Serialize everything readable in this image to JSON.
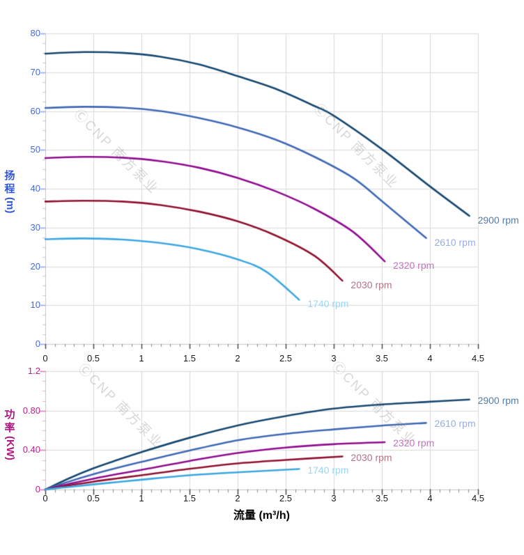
{
  "watermark": {
    "text": "ⒸCNP 南方泵业"
  },
  "colors": {
    "grid": "#d9d9d9",
    "axis_line": "#c4c4c4",
    "x_tick_major": "#3c3c3c",
    "x_tick_minor": "#8a8a8a",
    "head_axis_text": "#4468dd",
    "head_axis_title": "#2f55dd",
    "head_tick_major": "#8aa4ec",
    "head_tick_minor": "#b9c9f4",
    "power_axis_text": "#bb2288",
    "power_axis_title": "#b01580",
    "power_tick_major": "#d878b8",
    "power_tick_minor": "#eca8d4"
  },
  "chart_data": [
    {
      "type": "line",
      "title": "",
      "ylabel": "扬程",
      "ylabel_unit": "(m)",
      "xlabel": "",
      "ylim": [
        0,
        80
      ],
      "xlim": [
        0,
        4.5
      ],
      "ytick_values": [
        0,
        10,
        20,
        30,
        40,
        50,
        60,
        70,
        80
      ],
      "ytick_labels": [
        "0",
        "10",
        "20",
        "30",
        "40",
        "50",
        "60",
        "70",
        "80"
      ],
      "yminor_step": 2.5,
      "xtick_values": [
        0,
        0.5,
        1,
        1.5,
        2,
        2.5,
        3,
        3.5,
        4,
        4.5
      ],
      "xtick_labels": [
        "0",
        "0.5",
        "1",
        "1.5",
        "2",
        "2.5",
        "3",
        "3.5",
        "4",
        "4.5"
      ],
      "xminor_step": 0.1,
      "grid": true,
      "legend_position": "curve-ends-right",
      "series": [
        {
          "name": "2900 rpm",
          "color": "#17486f",
          "label_color": "#557ea6",
          "points": [
            [
              0,
              74.8
            ],
            [
              0.4,
              75.2
            ],
            [
              0.8,
              75.0
            ],
            [
              1.2,
              74.0
            ],
            [
              1.6,
              72.0
            ],
            [
              2.0,
              69.0
            ],
            [
              2.4,
              65.7
            ],
            [
              2.8,
              61.3
            ],
            [
              3.0,
              58.8
            ],
            [
              3.5,
              50.2
            ],
            [
              4.0,
              40.6
            ],
            [
              4.41,
              33.0
            ]
          ]
        },
        {
          "name": "2610 rpm",
          "color": "#4068b4",
          "label_color": "#96aee0",
          "points": [
            [
              0,
              60.8
            ],
            [
              0.4,
              61.1
            ],
            [
              0.8,
              60.9
            ],
            [
              1.2,
              60.0
            ],
            [
              1.6,
              58.2
            ],
            [
              2.0,
              55.8
            ],
            [
              2.4,
              52.6
            ],
            [
              2.8,
              48.2
            ],
            [
              3.2,
              42.8
            ],
            [
              3.5,
              36.8
            ],
            [
              3.96,
              27.3
            ]
          ]
        },
        {
          "name": "2320 rpm",
          "color": "#8f0d8f",
          "label_color": "#c470c4",
          "points": [
            [
              0,
              47.9
            ],
            [
              0.4,
              48.2
            ],
            [
              0.8,
              48.0
            ],
            [
              1.2,
              47.1
            ],
            [
              1.6,
              45.4
            ],
            [
              2.0,
              42.8
            ],
            [
              2.4,
              39.3
            ],
            [
              2.8,
              34.8
            ],
            [
              3.2,
              28.9
            ],
            [
              3.53,
              21.3
            ]
          ]
        },
        {
          "name": "2030 rpm",
          "color": "#8f1230",
          "label_color": "#b47484",
          "points": [
            [
              0,
              36.7
            ],
            [
              0.4,
              36.9
            ],
            [
              0.8,
              36.7
            ],
            [
              1.2,
              35.8
            ],
            [
              1.6,
              34.1
            ],
            [
              2.0,
              31.6
            ],
            [
              2.4,
              27.9
            ],
            [
              2.8,
              22.7
            ],
            [
              3.09,
              16.3
            ]
          ]
        },
        {
          "name": "1740 rpm",
          "color": "#3ba7e0",
          "label_color": "#9bd5f3",
          "points": [
            [
              0,
              27.0
            ],
            [
              0.4,
              27.2
            ],
            [
              0.8,
              26.9
            ],
            [
              1.2,
              26.0
            ],
            [
              1.6,
              24.4
            ],
            [
              2.0,
              21.8
            ],
            [
              2.3,
              18.6
            ],
            [
              2.64,
              11.4
            ]
          ]
        }
      ]
    },
    {
      "type": "line",
      "title": "",
      "ylabel": "功率",
      "ylabel_unit": "(KW)",
      "xlabel": "流量 (m³/h)",
      "ylim": [
        0,
        1.2
      ],
      "xlim": [
        0,
        4.5
      ],
      "ytick_values": [
        0,
        0.4,
        0.8,
        1.2
      ],
      "ytick_labels": [
        "0",
        "0.40",
        "0.80",
        "1.2"
      ],
      "yminor_step": 0.1,
      "xtick_values": [
        0,
        0.5,
        1,
        1.5,
        2,
        2.5,
        3,
        3.5,
        4,
        4.5
      ],
      "xtick_labels": [
        "0",
        "0.5",
        "1",
        "1.5",
        "2",
        "2.5",
        "3",
        "3.5",
        "4",
        "4.5"
      ],
      "xminor_step": 0.1,
      "grid": true,
      "legend_position": "curve-ends-right",
      "series": [
        {
          "name": "2900 rpm",
          "color": "#17486f",
          "label_color": "#557ea6",
          "points": [
            [
              0,
              0
            ],
            [
              0.25,
              0.115
            ],
            [
              0.5,
              0.215
            ],
            [
              0.75,
              0.3
            ],
            [
              1.0,
              0.38
            ],
            [
              1.5,
              0.525
            ],
            [
              2.0,
              0.65
            ],
            [
              2.5,
              0.745
            ],
            [
              3.0,
              0.82
            ],
            [
              3.5,
              0.862
            ],
            [
              4.0,
              0.89
            ],
            [
              4.41,
              0.912
            ]
          ]
        },
        {
          "name": "2610 rpm",
          "color": "#4068b4",
          "label_color": "#96aee0",
          "points": [
            [
              0,
              0
            ],
            [
              0.25,
              0.082
            ],
            [
              0.5,
              0.155
            ],
            [
              0.75,
              0.22
            ],
            [
              1.0,
              0.28
            ],
            [
              1.5,
              0.395
            ],
            [
              2.0,
              0.5
            ],
            [
              2.5,
              0.565
            ],
            [
              3.0,
              0.61
            ],
            [
              3.5,
              0.648
            ],
            [
              3.96,
              0.675
            ]
          ]
        },
        {
          "name": "2320 rpm",
          "color": "#8f0d8f",
          "label_color": "#c470c4",
          "points": [
            [
              0,
              0
            ],
            [
              0.25,
              0.058
            ],
            [
              0.5,
              0.11
            ],
            [
              0.75,
              0.157
            ],
            [
              1.0,
              0.2
            ],
            [
              1.5,
              0.29
            ],
            [
              2.0,
              0.37
            ],
            [
              2.5,
              0.425
            ],
            [
              3.0,
              0.46
            ],
            [
              3.53,
              0.48
            ]
          ]
        },
        {
          "name": "2030 rpm",
          "color": "#8f1230",
          "label_color": "#b47484",
          "points": [
            [
              0,
              0
            ],
            [
              0.25,
              0.042
            ],
            [
              0.5,
              0.08
            ],
            [
              0.75,
              0.113
            ],
            [
              1.0,
              0.145
            ],
            [
              1.5,
              0.21
            ],
            [
              2.0,
              0.265
            ],
            [
              2.5,
              0.3
            ],
            [
              3.09,
              0.335
            ]
          ]
        },
        {
          "name": "1740 rpm",
          "color": "#3ba7e0",
          "label_color": "#9bd5f3",
          "points": [
            [
              0,
              0
            ],
            [
              0.25,
              0.027
            ],
            [
              0.5,
              0.052
            ],
            [
              0.75,
              0.076
            ],
            [
              1.0,
              0.1
            ],
            [
              1.5,
              0.145
            ],
            [
              2.0,
              0.175
            ],
            [
              2.64,
              0.208
            ]
          ]
        }
      ]
    }
  ]
}
